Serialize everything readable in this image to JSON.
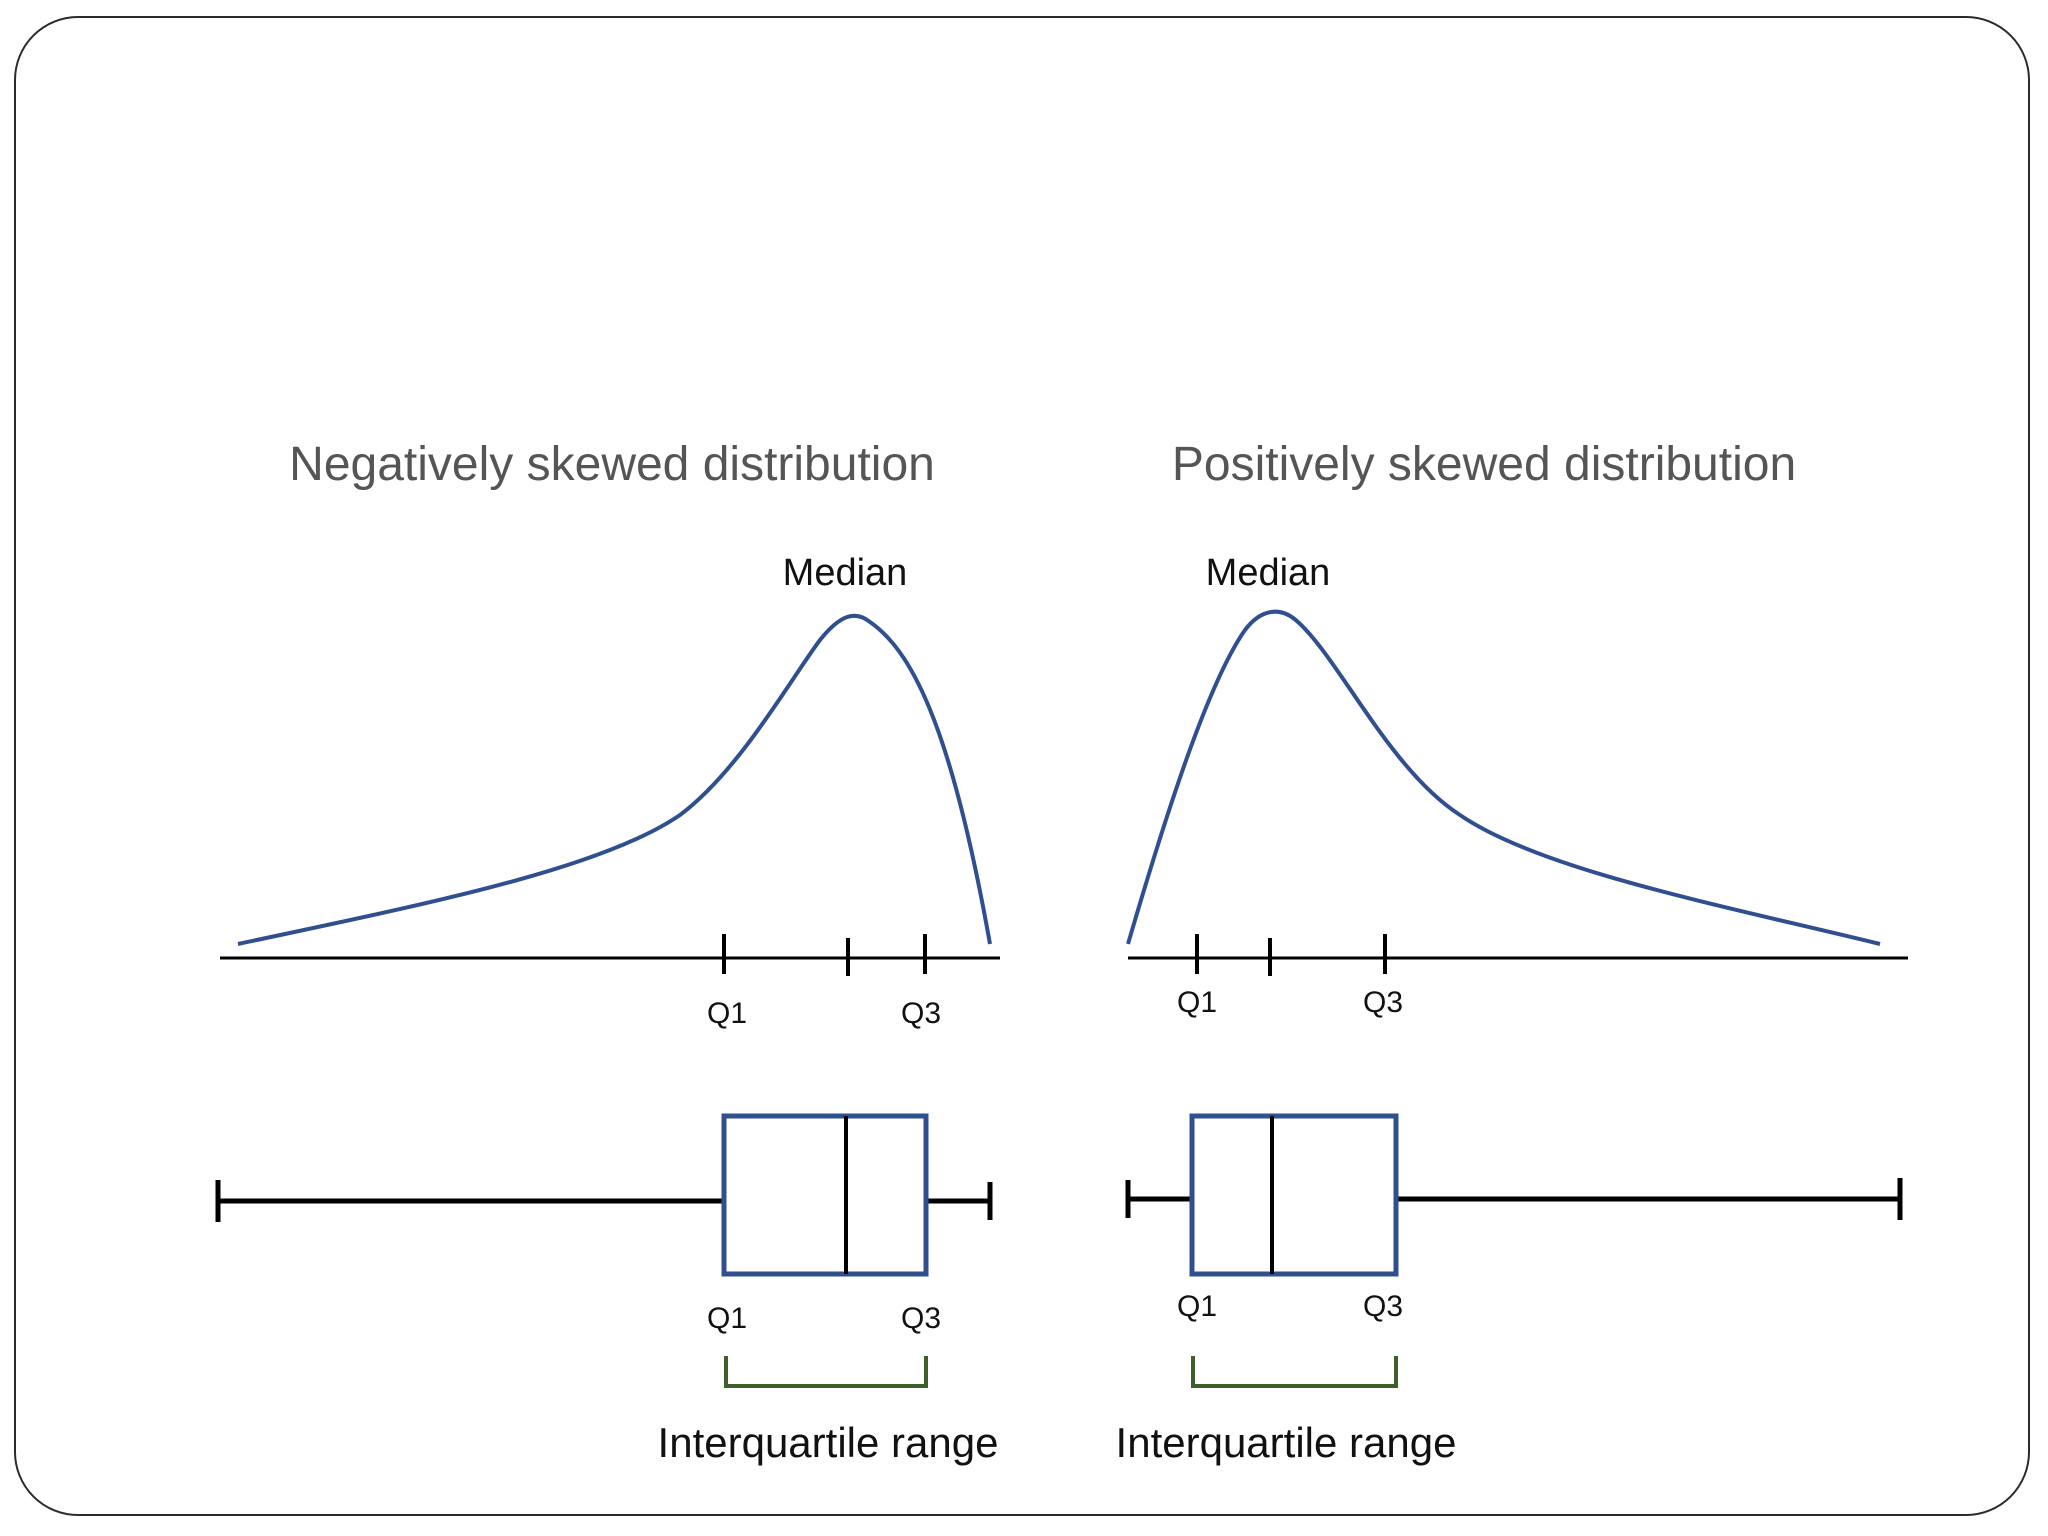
{
  "colors": {
    "curve": "#2f4f8f",
    "box": "#2f4f8f",
    "bracket": "#3f5f2a",
    "axis": "#000000",
    "title": "#555555"
  },
  "negative": {
    "title": "Negatively skewed distribution",
    "median_label": "Median",
    "axis_q1": "Q1",
    "axis_q3": "Q3",
    "box_q1": "Q1",
    "box_q3": "Q3",
    "iqr_label": "Interquartile range"
  },
  "positive": {
    "title": "Positively skewed distribution",
    "median_label": "Median",
    "axis_q1": "Q1",
    "axis_q3": "Q3",
    "box_q1": "Q1",
    "box_q3": "Q3",
    "iqr_label": "Interquartile range"
  }
}
